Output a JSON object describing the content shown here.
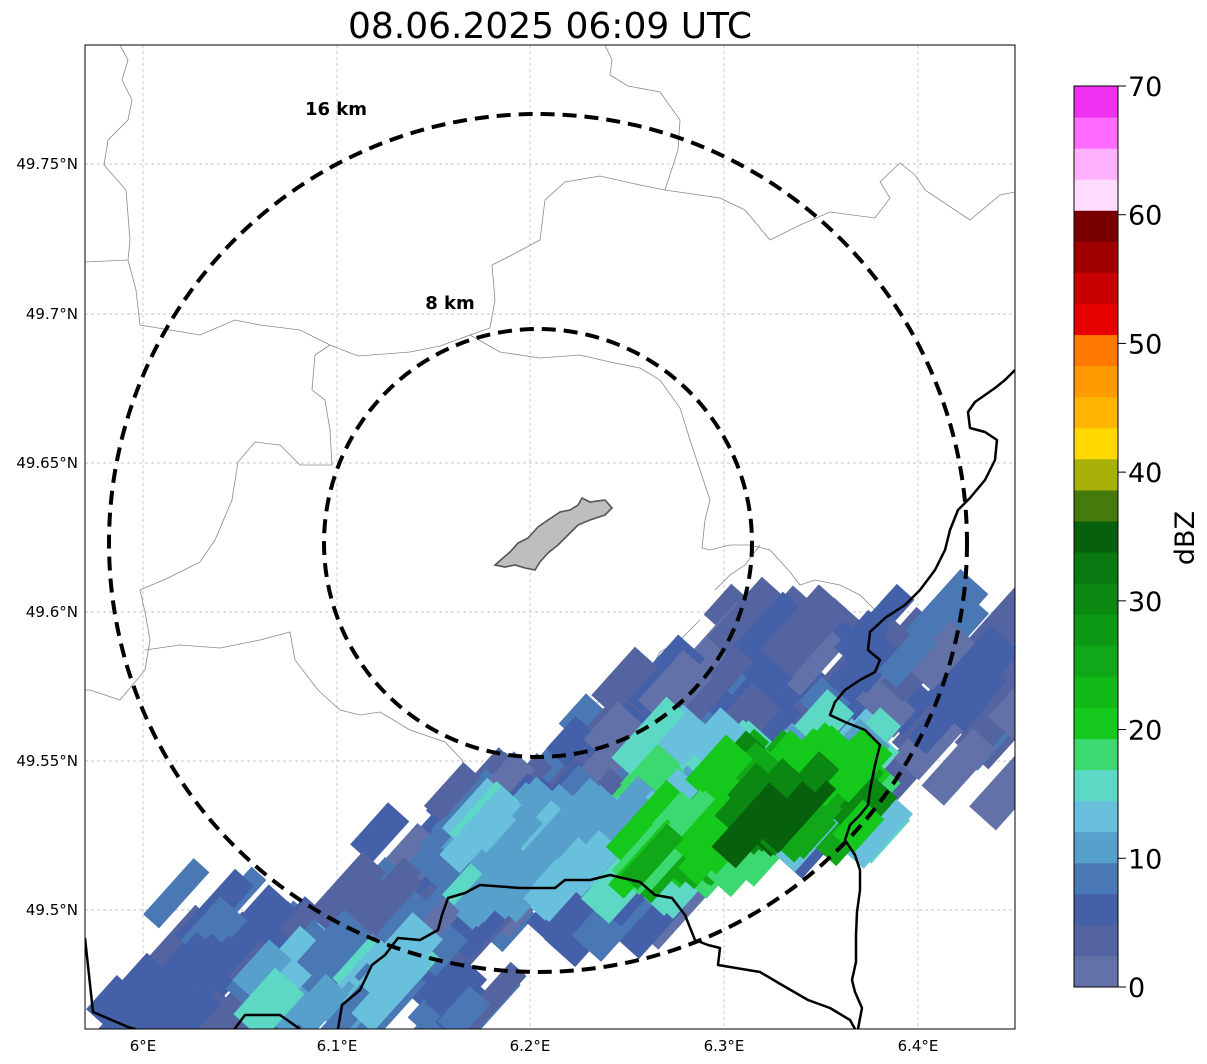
{
  "title": "08.06.2025 06:09 UTC",
  "axes": {
    "x_ticks": [
      "6°E",
      "6.1°E",
      "6.2°E",
      "6.3°E",
      "6.4°E"
    ],
    "y_ticks": [
      "49.75°N",
      "49.7°N",
      "49.65°N",
      "49.6°N",
      "49.55°N",
      "49.5°N"
    ]
  },
  "range_rings": [
    {
      "label": "16 km",
      "radius_km": 16
    },
    {
      "label": "8 km",
      "radius_km": 8
    }
  ],
  "colorbar": {
    "label": "dBZ",
    "ticks": [
      "0",
      "10",
      "20",
      "30",
      "40",
      "50",
      "60",
      "70"
    ],
    "range": [
      0,
      70
    ],
    "colors": [
      "#6272a8",
      "#5464a0",
      "#4460a8",
      "#4a78b4",
      "#58a0cc",
      "#68c0dc",
      "#5cd8c4",
      "#3cd870",
      "#14c81c",
      "#10b818",
      "#10a818",
      "#0c9814",
      "#0a8812",
      "#087810",
      "#06600c",
      "#467a0a",
      "#a8b00a",
      "#ffd800",
      "#ffb400",
      "#ff9a00",
      "#ff7800",
      "#e80000",
      "#c80000",
      "#a00000",
      "#780000",
      "#ffdcff",
      "#ffb0ff",
      "#ff6cff",
      "#f030f0"
    ]
  },
  "colors": {
    "borders_national": "#000000",
    "borders_regional": "#808080",
    "city_fill": "#bebebe",
    "grid": "#b4b4b4"
  }
}
